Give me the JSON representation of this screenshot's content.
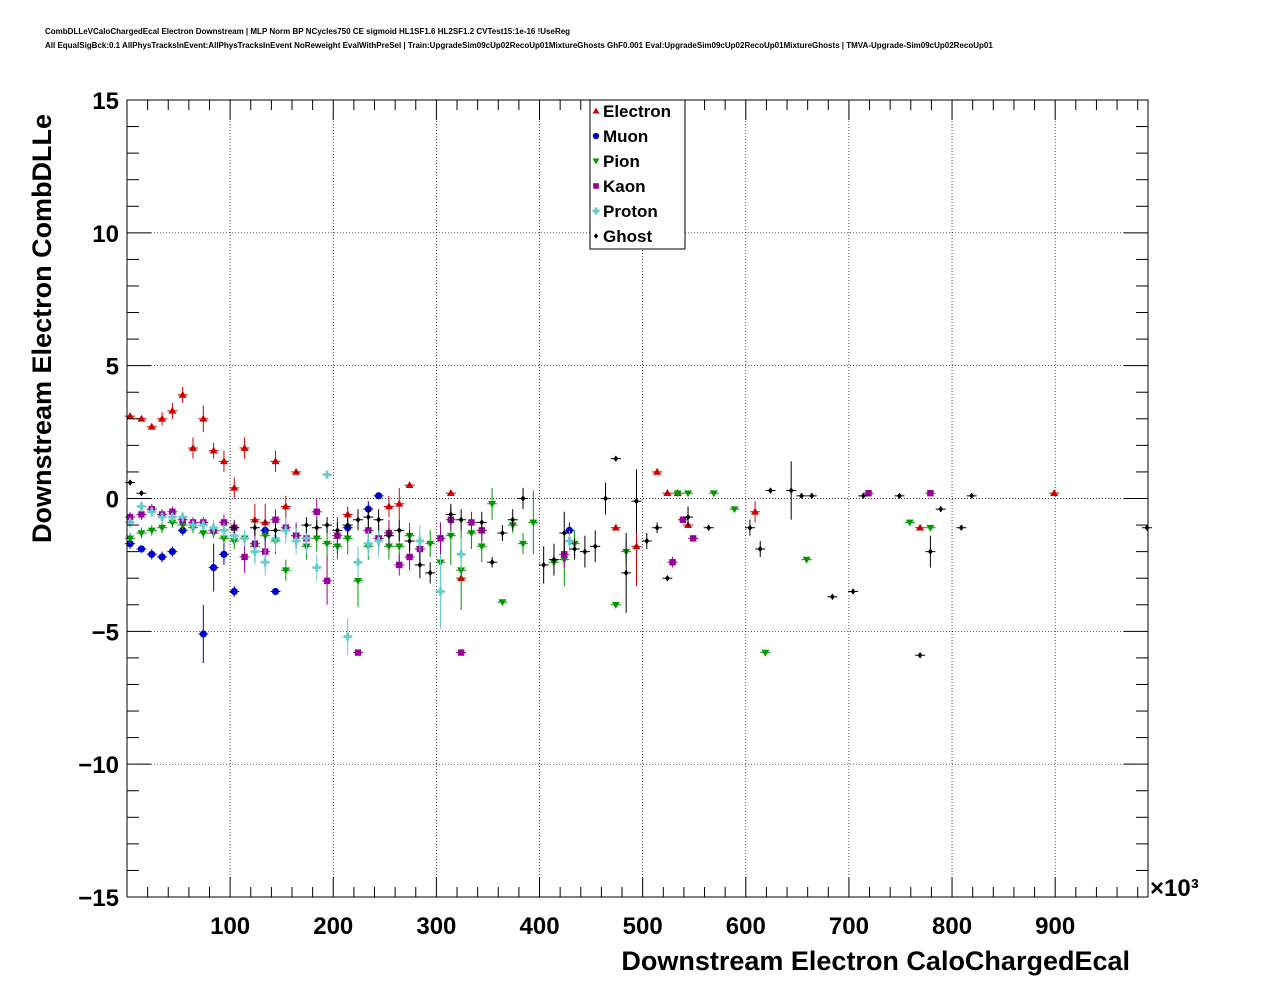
{
  "header": {
    "title_line1": "CombDLLeVCaloChargedEcal Electron Downstream | MLP Norm BP NCycles750 CE sigmoid HL1SF1.6 HL2SF1.2 CVTest15:1e-16 !UseReg",
    "title_line2": "All EqualSigBck:0.1 AllPhysTracksInEvent:AllPhysTracksInEvent NoReweight EvalWithPreSel | Train:UpgradeSim09cUp02RecoUp01MixtureGhosts GhF0.001 Eval:UpgradeSim09cUp02RecoUp01MixtureGhosts | TMVA-Upgrade-Sim09cUp02RecoUp01"
  },
  "chart_data": {
    "type": "scatter",
    "xlabel": "Downstream Electron CaloChargedEcal",
    "ylabel": "Downstream Electron CombDLLe",
    "x_multiplier_label": "×10³",
    "xlim": [
      0,
      990
    ],
    "ylim": [
      -15,
      15
    ],
    "x_ticks": [
      100,
      200,
      300,
      400,
      500,
      600,
      700,
      800,
      900
    ],
    "x_tick_labels": [
      "100",
      "200",
      "300",
      "400",
      "500",
      "600",
      "700",
      "800",
      "900"
    ],
    "y_ticks": [
      -15,
      -10,
      -5,
      0,
      5,
      10,
      15
    ],
    "y_tick_labels": [
      "−15",
      "−10",
      "−5",
      "0",
      "5",
      "10",
      "15"
    ],
    "grid": true,
    "legend_position": "top-center",
    "series": [
      {
        "name": "Electron",
        "color": "#cc0000",
        "marker": "triangle-up",
        "points": [
          [
            3,
            3.1,
            0.1
          ],
          [
            14,
            3.0,
            0.1
          ],
          [
            24,
            2.7,
            0.1
          ],
          [
            34,
            3.0,
            0.25
          ],
          [
            44,
            3.3,
            0.3
          ],
          [
            54,
            3.9,
            0.3
          ],
          [
            64,
            1.9,
            0.4
          ],
          [
            74,
            3.0,
            0.5
          ],
          [
            84,
            1.8,
            0.3
          ],
          [
            94,
            1.4,
            0.4
          ],
          [
            104,
            0.4,
            0.4
          ],
          [
            114,
            1.9,
            0.4
          ],
          [
            124,
            -0.8,
            0.6
          ],
          [
            134,
            -0.9,
            0.7
          ],
          [
            144,
            1.4,
            0.4
          ],
          [
            154,
            -0.3,
            0.4
          ],
          [
            164,
            1.0,
            0.1
          ],
          [
            214,
            -0.6,
            0.3
          ],
          [
            254,
            -0.3,
            0.4
          ],
          [
            264,
            -0.2,
            0.6
          ],
          [
            274,
            0.5,
            0.1
          ],
          [
            314,
            0.2,
            0.1
          ],
          [
            324,
            -3.0,
            0.2
          ],
          [
            344,
            -1.2,
            0.1
          ],
          [
            474,
            -1.1,
            0.1
          ],
          [
            494,
            -1.8,
            1.5
          ],
          [
            514,
            1.0,
            0.1
          ],
          [
            524,
            0.2,
            0.1
          ],
          [
            534,
            0.2,
            0.1
          ],
          [
            544,
            -1.0,
            0.1
          ],
          [
            609,
            -0.5,
            0.4
          ],
          [
            769,
            -1.1,
            0.1
          ],
          [
            899,
            0.2,
            0.1
          ]
        ]
      },
      {
        "name": "Muon",
        "color": "#0000cc",
        "marker": "circle",
        "points": [
          [
            3,
            -1.7,
            0.2
          ],
          [
            14,
            -1.9,
            0.1
          ],
          [
            24,
            -2.1,
            0.2
          ],
          [
            34,
            -2.2,
            0.2
          ],
          [
            44,
            -2.0,
            0.2
          ],
          [
            54,
            -1.2,
            0.2
          ],
          [
            74,
            -5.1,
            1.1
          ],
          [
            84,
            -2.6,
            0.9
          ],
          [
            94,
            -2.1,
            0.4
          ],
          [
            104,
            -3.5,
            0.2
          ],
          [
            134,
            -1.2,
            0.4
          ],
          [
            144,
            -3.5,
            0.1
          ],
          [
            214,
            -1.1,
            0.2
          ],
          [
            234,
            -0.4,
            0.3
          ],
          [
            244,
            0.1,
            0.1
          ],
          [
            429,
            -1.2,
            0.3
          ]
        ]
      },
      {
        "name": "Pion",
        "color": "#009900",
        "marker": "triangle-down",
        "points": [
          [
            3,
            -1.5,
            0.2
          ],
          [
            14,
            -1.3,
            0.2
          ],
          [
            24,
            -1.2,
            0.2
          ],
          [
            34,
            -1.1,
            0.2
          ],
          [
            44,
            -0.9,
            0.2
          ],
          [
            54,
            -1.0,
            0.2
          ],
          [
            64,
            -1.1,
            0.2
          ],
          [
            74,
            -1.3,
            0.2
          ],
          [
            84,
            -1.3,
            0.2
          ],
          [
            94,
            -1.5,
            0.2
          ],
          [
            104,
            -1.6,
            0.3
          ],
          [
            114,
            -1.5,
            0.3
          ],
          [
            124,
            -1.8,
            0.3
          ],
          [
            134,
            -1.4,
            0.4
          ],
          [
            144,
            -1.6,
            0.5
          ],
          [
            154,
            -2.7,
            0.4
          ],
          [
            164,
            -1.4,
            0.4
          ],
          [
            174,
            -1.8,
            0.5
          ],
          [
            184,
            -1.5,
            0.5
          ],
          [
            194,
            -1.7,
            0.6
          ],
          [
            204,
            -1.8,
            0.5
          ],
          [
            214,
            -1.5,
            0.6
          ],
          [
            224,
            -3.1,
            1.0
          ],
          [
            234,
            -1.8,
            0.5
          ],
          [
            244,
            -1.5,
            0.5
          ],
          [
            254,
            -1.8,
            0.5
          ],
          [
            264,
            -1.8,
            0.6
          ],
          [
            274,
            -1.4,
            0.5
          ],
          [
            284,
            -1.9,
            0.6
          ],
          [
            294,
            -1.7,
            0.5
          ],
          [
            304,
            -2.4,
            1.0
          ],
          [
            314,
            -1.4,
            1.1
          ],
          [
            324,
            -2.7,
            1.5
          ],
          [
            334,
            -1.3,
            0.6
          ],
          [
            344,
            -1.8,
            0.6
          ],
          [
            354,
            -0.2,
            0.6
          ],
          [
            364,
            -3.9,
            0.1
          ],
          [
            374,
            -1.0,
            0.3
          ],
          [
            384,
            -1.7,
            0.4
          ],
          [
            394,
            -0.9,
            1.2
          ],
          [
            414,
            -2.4,
            0.4
          ],
          [
            424,
            -2.3,
            1.0
          ],
          [
            434,
            -1.7,
            0.5
          ],
          [
            474,
            -4.0,
            0.1
          ],
          [
            484,
            -2.0,
            0.4
          ],
          [
            534,
            0.2,
            0.1
          ],
          [
            544,
            0.2,
            0.1
          ],
          [
            569,
            0.2,
            0.1
          ],
          [
            589,
            -0.4,
            0.1
          ],
          [
            619,
            -5.8,
            0.1
          ],
          [
            659,
            -2.3,
            0.1
          ],
          [
            759,
            -0.9,
            0.1
          ],
          [
            779,
            -1.1,
            0.1
          ]
        ]
      },
      {
        "name": "Kaon",
        "color": "#990099",
        "marker": "square",
        "points": [
          [
            3,
            -0.7,
            0.2
          ],
          [
            14,
            -0.6,
            0.2
          ],
          [
            24,
            -0.4,
            0.2
          ],
          [
            34,
            -0.6,
            0.2
          ],
          [
            44,
            -0.5,
            0.2
          ],
          [
            54,
            -0.8,
            0.2
          ],
          [
            64,
            -0.9,
            0.2
          ],
          [
            74,
            -0.9,
            0.2
          ],
          [
            84,
            -1.2,
            0.2
          ],
          [
            94,
            -0.9,
            0.3
          ],
          [
            104,
            -1.1,
            0.3
          ],
          [
            114,
            -2.2,
            0.6
          ],
          [
            124,
            -1.7,
            0.7
          ],
          [
            134,
            -2.0,
            0.6
          ],
          [
            144,
            -0.8,
            0.4
          ],
          [
            154,
            -1.1,
            0.4
          ],
          [
            164,
            -1.4,
            0.5
          ],
          [
            174,
            -1.5,
            0.5
          ],
          [
            184,
            -0.5,
            0.5
          ],
          [
            194,
            -3.1,
            0.9
          ],
          [
            204,
            -1.4,
            0.7
          ],
          [
            224,
            -5.8,
            0.1
          ],
          [
            234,
            -1.2,
            0.5
          ],
          [
            244,
            -1.5,
            0.4
          ],
          [
            254,
            -1.3,
            0.5
          ],
          [
            264,
            -2.5,
            0.4
          ],
          [
            274,
            -2.2,
            0.5
          ],
          [
            284,
            -1.9,
            0.4
          ],
          [
            304,
            -1.5,
            0.6
          ],
          [
            314,
            -0.8,
            0.4
          ],
          [
            324,
            -5.8,
            0.1
          ],
          [
            334,
            -0.9,
            0.4
          ],
          [
            344,
            -1.2,
            0.4
          ],
          [
            424,
            -2.1,
            0.5
          ],
          [
            529,
            -2.4,
            0.2
          ],
          [
            539,
            -0.8,
            0.1
          ],
          [
            549,
            -1.5,
            0.1
          ],
          [
            719,
            0.2,
            0.1
          ],
          [
            779,
            0.2,
            0.1
          ]
        ]
      },
      {
        "name": "Proton",
        "color": "#66cccc",
        "marker": "cross",
        "points": [
          [
            3,
            -0.9,
            0.2
          ],
          [
            14,
            -0.3,
            0.2
          ],
          [
            24,
            -0.5,
            0.2
          ],
          [
            34,
            -0.7,
            0.2
          ],
          [
            44,
            -0.7,
            0.2
          ],
          [
            54,
            -0.7,
            0.2
          ],
          [
            64,
            -1.0,
            0.2
          ],
          [
            74,
            -1.0,
            0.2
          ],
          [
            84,
            -1.1,
            0.3
          ],
          [
            94,
            -1.2,
            0.3
          ],
          [
            104,
            -1.4,
            0.3
          ],
          [
            114,
            -1.5,
            0.3
          ],
          [
            124,
            -2.0,
            0.5
          ],
          [
            134,
            -2.4,
            0.5
          ],
          [
            144,
            -1.5,
            0.5
          ],
          [
            154,
            -1.2,
            0.5
          ],
          [
            164,
            -1.6,
            0.5
          ],
          [
            174,
            -1.5,
            0.6
          ],
          [
            184,
            -2.6,
            0.5
          ],
          [
            194,
            0.9,
            0.1
          ],
          [
            214,
            -5.2,
            0.7
          ],
          [
            224,
            -2.4,
            0.6
          ],
          [
            234,
            -1.7,
            0.5
          ],
          [
            244,
            -1.6,
            0.6
          ],
          [
            284,
            -1.6,
            0.6
          ],
          [
            304,
            -3.5,
            1.4
          ],
          [
            324,
            -2.1,
            0.6
          ],
          [
            429,
            -1.6,
            0.4
          ]
        ]
      },
      {
        "name": "Ghost",
        "color": "#000000",
        "marker": "diamond",
        "points": [
          [
            3,
            0.6,
            0.1
          ],
          [
            14,
            0.2,
            0.1
          ],
          [
            104,
            -1.1,
            0.2
          ],
          [
            124,
            -1.1,
            0.3
          ],
          [
            144,
            -1.2,
            0.3
          ],
          [
            174,
            -1.0,
            0.3
          ],
          [
            184,
            -1.1,
            0.3
          ],
          [
            194,
            -1.0,
            0.3
          ],
          [
            204,
            -1.2,
            0.3
          ],
          [
            214,
            -1.0,
            0.4
          ],
          [
            224,
            -0.8,
            0.4
          ],
          [
            234,
            -0.7,
            0.4
          ],
          [
            244,
            -0.8,
            0.4
          ],
          [
            254,
            -1.4,
            0.3
          ],
          [
            264,
            -1.2,
            0.4
          ],
          [
            274,
            -1.6,
            0.4
          ],
          [
            284,
            -2.5,
            0.5
          ],
          [
            294,
            -2.8,
            0.4
          ],
          [
            314,
            -0.6,
            0.4
          ],
          [
            324,
            -0.8,
            0.4
          ],
          [
            344,
            -0.9,
            0.4
          ],
          [
            354,
            -2.4,
            0.2
          ],
          [
            364,
            -1.3,
            0.3
          ],
          [
            374,
            -0.8,
            0.4
          ],
          [
            384,
            0.0,
            0.4
          ],
          [
            404,
            -2.5,
            0.7
          ],
          [
            414,
            -2.3,
            0.6
          ],
          [
            424,
            -1.3,
            0.8
          ],
          [
            434,
            -1.9,
            0.4
          ],
          [
            444,
            -2.0,
            0.6
          ],
          [
            454,
            -1.8,
            0.6
          ],
          [
            464,
            0.0,
            0.6
          ],
          [
            474,
            1.5,
            0.1
          ],
          [
            484,
            -2.8,
            1.5
          ],
          [
            494,
            -0.1,
            1.2
          ],
          [
            504,
            -1.6,
            0.3
          ],
          [
            514,
            -1.1,
            0.2
          ],
          [
            524,
            -3.0,
            0.1
          ],
          [
            544,
            -0.7,
            0.4
          ],
          [
            564,
            -1.1,
            0.1
          ],
          [
            604,
            -1.1,
            0.3
          ],
          [
            614,
            -1.9,
            0.3
          ],
          [
            624,
            0.3,
            0.1
          ],
          [
            644,
            0.3,
            1.1
          ],
          [
            654,
            0.1,
            0.1
          ],
          [
            664,
            0.1,
            0.1
          ],
          [
            684,
            -3.7,
            0.1
          ],
          [
            704,
            -3.5,
            0.1
          ],
          [
            714,
            0.1,
            0.1
          ],
          [
            749,
            0.1,
            0.1
          ],
          [
            769,
            -5.9,
            0.1
          ],
          [
            779,
            -2.0,
            0.6
          ],
          [
            789,
            -0.4,
            0.1
          ],
          [
            809,
            -1.1,
            0.1
          ],
          [
            819,
            0.1,
            0.1
          ],
          [
            989,
            -1.1,
            0.1
          ]
        ]
      }
    ]
  }
}
